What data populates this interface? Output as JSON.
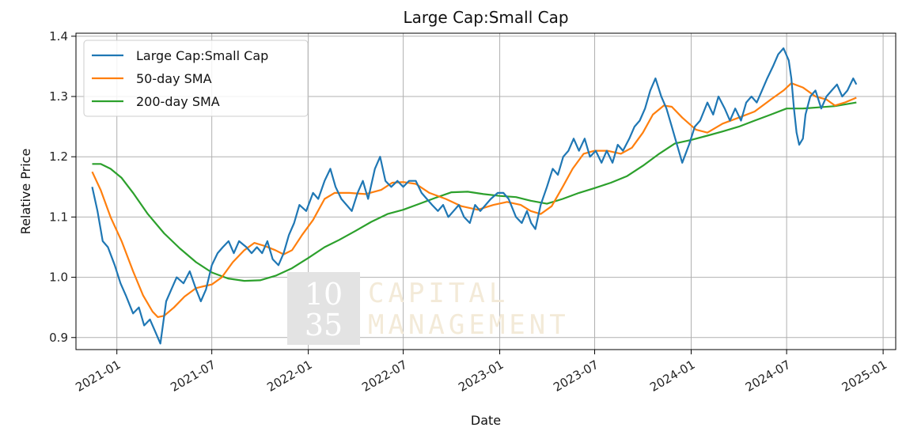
{
  "chart_data": {
    "type": "line",
    "title": "Large Cap:Small Cap",
    "xlabel": "Date",
    "ylabel": "Relative Price",
    "ylim": [
      0.88,
      1.405
    ],
    "xlim": [
      "2020-10-15",
      "2025-01-25"
    ],
    "grid": true,
    "legend_position": "top-left",
    "x_ticks": [
      {
        "date": "2021-01-01",
        "label": "2021-01"
      },
      {
        "date": "2021-07-01",
        "label": "2021-07"
      },
      {
        "date": "2022-01-01",
        "label": "2022-01"
      },
      {
        "date": "2022-07-01",
        "label": "2022-07"
      },
      {
        "date": "2023-01-01",
        "label": "2023-01"
      },
      {
        "date": "2023-07-01",
        "label": "2023-07"
      },
      {
        "date": "2024-01-01",
        "label": "2024-01"
      },
      {
        "date": "2024-07-01",
        "label": "2024-07"
      },
      {
        "date": "2025-01-01",
        "label": "2025-01"
      }
    ],
    "y_ticks": [
      {
        "value": 0.9,
        "label": "0.9"
      },
      {
        "value": 1.0,
        "label": "1.0"
      },
      {
        "value": 1.1,
        "label": "1.1"
      },
      {
        "value": 1.2,
        "label": "1.2"
      },
      {
        "value": 1.3,
        "label": "1.3"
      },
      {
        "value": 1.4,
        "label": "1.4"
      }
    ],
    "series": [
      {
        "name": "Large Cap:Small Cap",
        "color": "#1f77b4",
        "points": [
          [
            "2020-11-15",
            1.15
          ],
          [
            "2020-11-25",
            1.11
          ],
          [
            "2020-12-05",
            1.06
          ],
          [
            "2020-12-15",
            1.05
          ],
          [
            "2020-12-28",
            1.02
          ],
          [
            "2021-01-08",
            0.99
          ],
          [
            "2021-01-18",
            0.97
          ],
          [
            "2021-02-01",
            0.94
          ],
          [
            "2021-02-12",
            0.95
          ],
          [
            "2021-02-22",
            0.92
          ],
          [
            "2021-03-05",
            0.93
          ],
          [
            "2021-03-15",
            0.91
          ],
          [
            "2021-03-25",
            0.89
          ],
          [
            "2021-04-05",
            0.96
          ],
          [
            "2021-04-15",
            0.98
          ],
          [
            "2021-04-25",
            1.0
          ],
          [
            "2021-05-08",
            0.99
          ],
          [
            "2021-05-20",
            1.01
          ],
          [
            "2021-06-01",
            0.98
          ],
          [
            "2021-06-10",
            0.96
          ],
          [
            "2021-06-20",
            0.98
          ],
          [
            "2021-07-01",
            1.02
          ],
          [
            "2021-07-12",
            1.04
          ],
          [
            "2021-07-22",
            1.05
          ],
          [
            "2021-08-02",
            1.06
          ],
          [
            "2021-08-12",
            1.04
          ],
          [
            "2021-08-22",
            1.06
          ],
          [
            "2021-09-05",
            1.05
          ],
          [
            "2021-09-15",
            1.04
          ],
          [
            "2021-09-25",
            1.05
          ],
          [
            "2021-10-05",
            1.04
          ],
          [
            "2021-10-15",
            1.06
          ],
          [
            "2021-10-25",
            1.03
          ],
          [
            "2021-11-05",
            1.02
          ],
          [
            "2021-11-15",
            1.04
          ],
          [
            "2021-11-25",
            1.07
          ],
          [
            "2021-12-05",
            1.09
          ],
          [
            "2021-12-15",
            1.12
          ],
          [
            "2021-12-28",
            1.11
          ],
          [
            "2022-01-10",
            1.14
          ],
          [
            "2022-01-20",
            1.13
          ],
          [
            "2022-02-01",
            1.16
          ],
          [
            "2022-02-12",
            1.18
          ],
          [
            "2022-02-22",
            1.15
          ],
          [
            "2022-03-05",
            1.13
          ],
          [
            "2022-03-15",
            1.12
          ],
          [
            "2022-03-25",
            1.11
          ],
          [
            "2022-04-05",
            1.14
          ],
          [
            "2022-04-15",
            1.16
          ],
          [
            "2022-04-25",
            1.13
          ],
          [
            "2022-05-08",
            1.18
          ],
          [
            "2022-05-18",
            1.2
          ],
          [
            "2022-05-28",
            1.16
          ],
          [
            "2022-06-08",
            1.15
          ],
          [
            "2022-06-20",
            1.16
          ],
          [
            "2022-07-01",
            1.15
          ],
          [
            "2022-07-12",
            1.16
          ],
          [
            "2022-07-25",
            1.16
          ],
          [
            "2022-08-05",
            1.14
          ],
          [
            "2022-08-15",
            1.13
          ],
          [
            "2022-08-25",
            1.12
          ],
          [
            "2022-09-05",
            1.11
          ],
          [
            "2022-09-15",
            1.12
          ],
          [
            "2022-09-25",
            1.1
          ],
          [
            "2022-10-05",
            1.11
          ],
          [
            "2022-10-15",
            1.12
          ],
          [
            "2022-10-25",
            1.1
          ],
          [
            "2022-11-05",
            1.09
          ],
          [
            "2022-11-15",
            1.12
          ],
          [
            "2022-11-25",
            1.11
          ],
          [
            "2022-12-05",
            1.12
          ],
          [
            "2022-12-15",
            1.13
          ],
          [
            "2022-12-28",
            1.14
          ],
          [
            "2023-01-08",
            1.14
          ],
          [
            "2023-01-18",
            1.13
          ],
          [
            "2023-02-01",
            1.1
          ],
          [
            "2023-02-12",
            1.09
          ],
          [
            "2023-02-22",
            1.11
          ],
          [
            "2023-03-02",
            1.09
          ],
          [
            "2023-03-10",
            1.08
          ],
          [
            "2023-03-20",
            1.12
          ],
          [
            "2023-04-01",
            1.15
          ],
          [
            "2023-04-12",
            1.18
          ],
          [
            "2023-04-22",
            1.17
          ],
          [
            "2023-05-02",
            1.2
          ],
          [
            "2023-05-12",
            1.21
          ],
          [
            "2023-05-22",
            1.23
          ],
          [
            "2023-06-01",
            1.21
          ],
          [
            "2023-06-12",
            1.23
          ],
          [
            "2023-06-22",
            1.2
          ],
          [
            "2023-07-03",
            1.21
          ],
          [
            "2023-07-14",
            1.19
          ],
          [
            "2023-07-24",
            1.21
          ],
          [
            "2023-08-04",
            1.19
          ],
          [
            "2023-08-14",
            1.22
          ],
          [
            "2023-08-24",
            1.21
          ],
          [
            "2023-09-05",
            1.23
          ],
          [
            "2023-09-15",
            1.25
          ],
          [
            "2023-09-25",
            1.26
          ],
          [
            "2023-10-05",
            1.28
          ],
          [
            "2023-10-15",
            1.31
          ],
          [
            "2023-10-25",
            1.33
          ],
          [
            "2023-11-05",
            1.3
          ],
          [
            "2023-11-15",
            1.28
          ],
          [
            "2023-11-25",
            1.25
          ],
          [
            "2023-12-05",
            1.22
          ],
          [
            "2023-12-15",
            1.19
          ],
          [
            "2023-12-28",
            1.22
          ],
          [
            "2024-01-08",
            1.25
          ],
          [
            "2024-01-18",
            1.26
          ],
          [
            "2024-02-01",
            1.29
          ],
          [
            "2024-02-12",
            1.27
          ],
          [
            "2024-02-22",
            1.3
          ],
          [
            "2024-03-05",
            1.28
          ],
          [
            "2024-03-15",
            1.26
          ],
          [
            "2024-03-25",
            1.28
          ],
          [
            "2024-04-05",
            1.26
          ],
          [
            "2024-04-15",
            1.29
          ],
          [
            "2024-04-25",
            1.3
          ],
          [
            "2024-05-05",
            1.29
          ],
          [
            "2024-05-15",
            1.31
          ],
          [
            "2024-05-25",
            1.33
          ],
          [
            "2024-06-05",
            1.35
          ],
          [
            "2024-06-15",
            1.37
          ],
          [
            "2024-06-25",
            1.38
          ],
          [
            "2024-07-05",
            1.36
          ],
          [
            "2024-07-10",
            1.33
          ],
          [
            "2024-07-15",
            1.28
          ],
          [
            "2024-07-20",
            1.24
          ],
          [
            "2024-07-25",
            1.22
          ],
          [
            "2024-08-01",
            1.23
          ],
          [
            "2024-08-06",
            1.27
          ],
          [
            "2024-08-15",
            1.3
          ],
          [
            "2024-08-25",
            1.31
          ],
          [
            "2024-09-05",
            1.28
          ],
          [
            "2024-09-15",
            1.3
          ],
          [
            "2024-09-25",
            1.31
          ],
          [
            "2024-10-05",
            1.32
          ],
          [
            "2024-10-15",
            1.3
          ],
          [
            "2024-10-25",
            1.31
          ],
          [
            "2024-11-05",
            1.33
          ],
          [
            "2024-11-11",
            1.32
          ]
        ]
      },
      {
        "name": "50-day SMA",
        "color": "#ff7f0e",
        "points": [
          [
            "2020-11-15",
            1.175
          ],
          [
            "2020-12-01",
            1.145
          ],
          [
            "2020-12-20",
            1.1
          ],
          [
            "2021-01-10",
            1.06
          ],
          [
            "2021-02-01",
            1.01
          ],
          [
            "2021-02-20",
            0.97
          ],
          [
            "2021-03-10",
            0.943
          ],
          [
            "2021-03-20",
            0.934
          ],
          [
            "2021-04-01",
            0.936
          ],
          [
            "2021-04-20",
            0.95
          ],
          [
            "2021-05-10",
            0.968
          ],
          [
            "2021-06-01",
            0.982
          ],
          [
            "2021-06-15",
            0.985
          ],
          [
            "2021-07-01",
            0.988
          ],
          [
            "2021-07-20",
            1.0
          ],
          [
            "2021-08-10",
            1.025
          ],
          [
            "2021-09-01",
            1.045
          ],
          [
            "2021-09-20",
            1.057
          ],
          [
            "2021-10-10",
            1.052
          ],
          [
            "2021-10-30",
            1.045
          ],
          [
            "2021-11-15",
            1.038
          ],
          [
            "2021-12-01",
            1.045
          ],
          [
            "2021-12-20",
            1.07
          ],
          [
            "2022-01-10",
            1.095
          ],
          [
            "2022-02-01",
            1.13
          ],
          [
            "2022-02-20",
            1.14
          ],
          [
            "2022-03-20",
            1.14
          ],
          [
            "2022-04-20",
            1.138
          ],
          [
            "2022-05-20",
            1.145
          ],
          [
            "2022-06-10",
            1.157
          ],
          [
            "2022-07-01",
            1.158
          ],
          [
            "2022-07-25",
            1.155
          ],
          [
            "2022-08-20",
            1.14
          ],
          [
            "2022-09-20",
            1.13
          ],
          [
            "2022-10-20",
            1.118
          ],
          [
            "2022-11-20",
            1.112
          ],
          [
            "2022-12-20",
            1.12
          ],
          [
            "2023-01-15",
            1.125
          ],
          [
            "2023-02-10",
            1.12
          ],
          [
            "2023-03-01",
            1.11
          ],
          [
            "2023-03-20",
            1.105
          ],
          [
            "2023-04-10",
            1.118
          ],
          [
            "2023-05-01",
            1.15
          ],
          [
            "2023-05-20",
            1.18
          ],
          [
            "2023-06-10",
            1.205
          ],
          [
            "2023-07-01",
            1.21
          ],
          [
            "2023-07-25",
            1.21
          ],
          [
            "2023-08-20",
            1.205
          ],
          [
            "2023-09-10",
            1.215
          ],
          [
            "2023-10-01",
            1.24
          ],
          [
            "2023-10-20",
            1.27
          ],
          [
            "2023-11-10",
            1.285
          ],
          [
            "2023-11-25",
            1.283
          ],
          [
            "2023-12-15",
            1.265
          ],
          [
            "2024-01-10",
            1.245
          ],
          [
            "2024-02-01",
            1.24
          ],
          [
            "2024-03-01",
            1.255
          ],
          [
            "2024-04-01",
            1.265
          ],
          [
            "2024-05-01",
            1.275
          ],
          [
            "2024-06-01",
            1.295
          ],
          [
            "2024-06-25",
            1.31
          ],
          [
            "2024-07-10",
            1.322
          ],
          [
            "2024-08-01",
            1.315
          ],
          [
            "2024-08-25",
            1.3
          ],
          [
            "2024-09-15",
            1.295
          ],
          [
            "2024-10-01",
            1.285
          ],
          [
            "2024-10-20",
            1.29
          ],
          [
            "2024-11-11",
            1.298
          ]
        ]
      },
      {
        "name": "200-day SMA",
        "color": "#2ca02c",
        "points": [
          [
            "2020-11-15",
            1.188
          ],
          [
            "2020-12-01",
            1.188
          ],
          [
            "2020-12-20",
            1.18
          ],
          [
            "2021-01-10",
            1.165
          ],
          [
            "2021-02-01",
            1.14
          ],
          [
            "2021-03-01",
            1.105
          ],
          [
            "2021-04-01",
            1.073
          ],
          [
            "2021-05-01",
            1.048
          ],
          [
            "2021-06-01",
            1.025
          ],
          [
            "2021-07-01",
            1.008
          ],
          [
            "2021-08-01",
            0.998
          ],
          [
            "2021-09-01",
            0.994
          ],
          [
            "2021-10-01",
            0.995
          ],
          [
            "2021-11-01",
            1.003
          ],
          [
            "2021-12-01",
            1.015
          ],
          [
            "2022-01-01",
            1.032
          ],
          [
            "2022-02-01",
            1.05
          ],
          [
            "2022-03-01",
            1.062
          ],
          [
            "2022-04-01",
            1.077
          ],
          [
            "2022-05-01",
            1.092
          ],
          [
            "2022-06-01",
            1.105
          ],
          [
            "2022-07-01",
            1.112
          ],
          [
            "2022-08-01",
            1.122
          ],
          [
            "2022-09-01",
            1.132
          ],
          [
            "2022-10-01",
            1.141
          ],
          [
            "2022-11-01",
            1.142
          ],
          [
            "2022-12-01",
            1.138
          ],
          [
            "2023-01-01",
            1.135
          ],
          [
            "2023-02-01",
            1.133
          ],
          [
            "2023-03-01",
            1.127
          ],
          [
            "2023-04-01",
            1.122
          ],
          [
            "2023-05-01",
            1.13
          ],
          [
            "2023-06-01",
            1.14
          ],
          [
            "2023-07-01",
            1.148
          ],
          [
            "2023-08-01",
            1.157
          ],
          [
            "2023-09-01",
            1.168
          ],
          [
            "2023-10-01",
            1.185
          ],
          [
            "2023-11-01",
            1.205
          ],
          [
            "2023-12-01",
            1.222
          ],
          [
            "2024-01-01",
            1.228
          ],
          [
            "2024-02-01",
            1.235
          ],
          [
            "2024-03-01",
            1.242
          ],
          [
            "2024-04-01",
            1.25
          ],
          [
            "2024-05-01",
            1.26
          ],
          [
            "2024-06-01",
            1.27
          ],
          [
            "2024-07-01",
            1.28
          ],
          [
            "2024-08-01",
            1.28
          ],
          [
            "2024-09-01",
            1.282
          ],
          [
            "2024-10-01",
            1.284
          ],
          [
            "2024-11-11",
            1.29
          ]
        ]
      }
    ]
  },
  "watermark": {
    "logo_top": "10",
    "logo_bottom": "35",
    "line1": "CAPITAL",
    "line2": "MANAGEMENT"
  }
}
